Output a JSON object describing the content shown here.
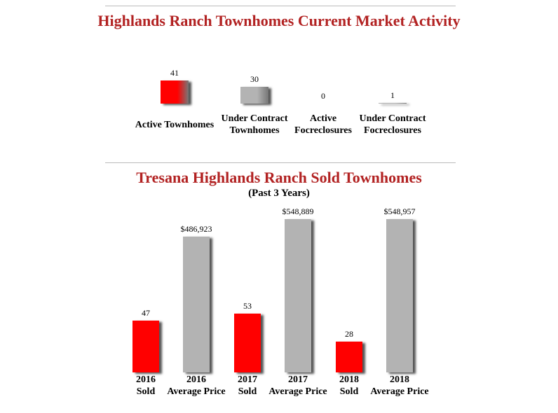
{
  "chart_data": [
    {
      "type": "bar",
      "title": "Highlands Ranch Townhomes Current Market Activity",
      "categories": [
        "Active Townhomes",
        "Under Contract\nTownhomes",
        "Active\nFocreclosures",
        "Under Contract\nFocreclosures"
      ],
      "values": [
        41,
        30,
        0,
        1
      ],
      "colors": [
        "#ff0000",
        "#b3b3b3",
        "#b3b3b3",
        "#b3b3b3"
      ]
    },
    {
      "type": "bar",
      "title": "Tresana Highlands Ranch Sold Townhomes",
      "subtitle": "(Past 3 Years)",
      "categories": [
        "2016\nSold",
        "2016\nAverage Price",
        "2017\nSold",
        "2017\nAverage Price",
        "2018\nSold",
        "2018\nAverage Price"
      ],
      "values": [
        47,
        486923,
        53,
        548889,
        28,
        548957
      ],
      "value_labels": [
        "47",
        "$486,923",
        "53",
        "$548,889",
        "28",
        "$548,957"
      ],
      "axis": [
        "y",
        "y2",
        "y",
        "y2",
        "y",
        "y2"
      ],
      "colors": [
        "#ff0000",
        "#b3b3b3",
        "#ff0000",
        "#b3b3b3",
        "#ff0000",
        "#b3b3b3"
      ]
    }
  ]
}
